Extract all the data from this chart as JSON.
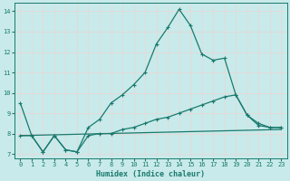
{
  "xlabel": "Humidex (Indice chaleur)",
  "bg_color": "#c8eaea",
  "line_color": "#1a7a6e",
  "grid_color": "#e8d8d8",
  "xlim": [
    -0.5,
    23.5
  ],
  "ylim": [
    6.8,
    14.4
  ],
  "yticks": [
    7,
    8,
    9,
    10,
    11,
    12,
    13,
    14
  ],
  "xticks": [
    0,
    1,
    2,
    3,
    4,
    5,
    6,
    7,
    8,
    9,
    10,
    11,
    12,
    13,
    14,
    15,
    16,
    17,
    18,
    19,
    20,
    21,
    22,
    23
  ],
  "line1_x": [
    0,
    1,
    2,
    3,
    4,
    5,
    6,
    7,
    8,
    9,
    10,
    11,
    12,
    13,
    14,
    15,
    16,
    17,
    18,
    19,
    20,
    21,
    22,
    23
  ],
  "line1_y": [
    9.5,
    7.9,
    7.1,
    7.9,
    7.2,
    7.1,
    8.3,
    8.7,
    9.5,
    9.9,
    10.4,
    11.0,
    12.4,
    13.2,
    14.1,
    13.3,
    11.9,
    11.6,
    11.7,
    9.9,
    8.9,
    8.5,
    8.3,
    8.3
  ],
  "line2_x": [
    0,
    1,
    2,
    3,
    4,
    5,
    6,
    7,
    8,
    9,
    10,
    11,
    12,
    13,
    14,
    15,
    16,
    17,
    18,
    19,
    20,
    21,
    22,
    23
  ],
  "line2_y": [
    7.9,
    7.9,
    7.1,
    7.9,
    7.2,
    7.1,
    7.9,
    8.0,
    8.0,
    8.2,
    8.3,
    8.5,
    8.7,
    8.8,
    9.0,
    9.2,
    9.4,
    9.6,
    9.8,
    9.9,
    8.9,
    8.4,
    8.3,
    8.3
  ],
  "line3_x": [
    0,
    23
  ],
  "line3_y": [
    7.9,
    8.2
  ],
  "marker": "+",
  "marker_size": 3.5,
  "linewidth": 0.9,
  "axis_fontsize": 6,
  "tick_fontsize": 5
}
